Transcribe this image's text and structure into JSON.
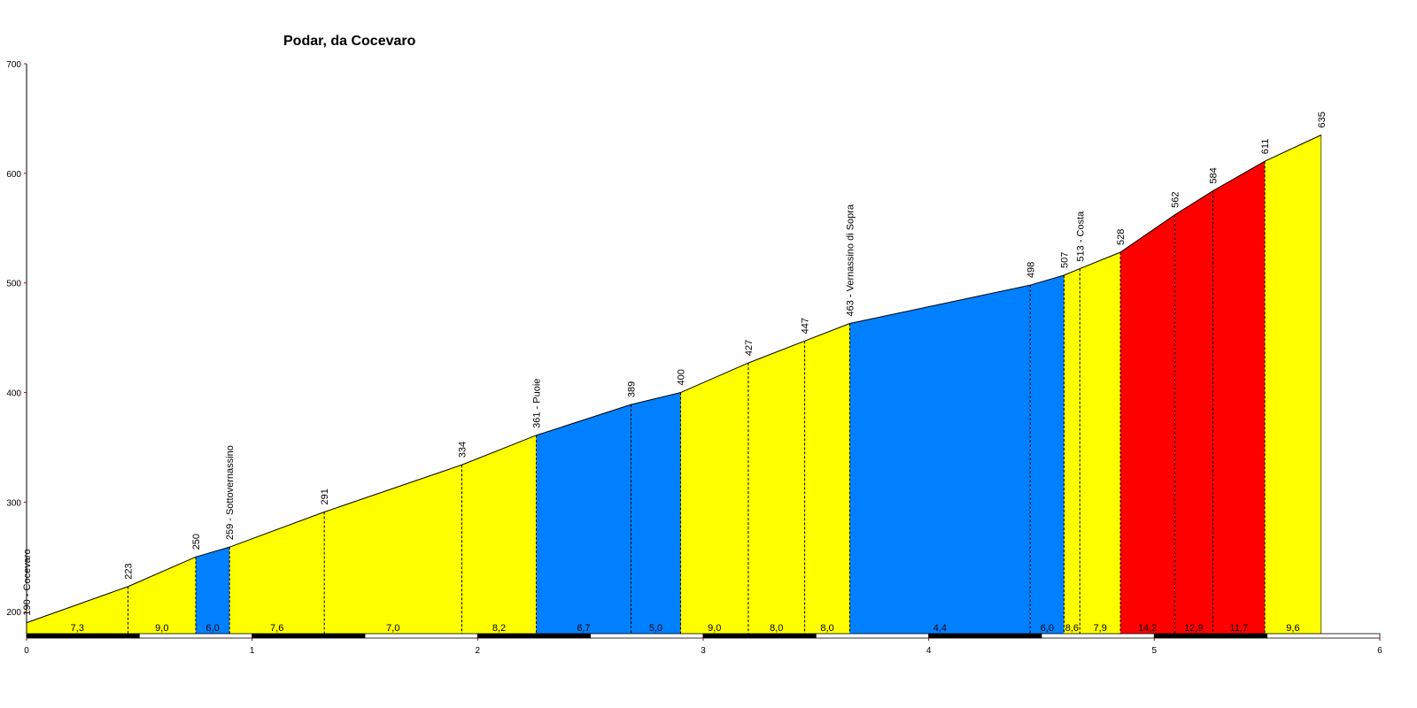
{
  "chart_data": {
    "type": "area",
    "title": "Podar, da Cocevaro",
    "xlabel": "",
    "ylabel": "",
    "xlim": [
      0,
      6
    ],
    "ylim": [
      180,
      700
    ],
    "x_ticks": [
      "0",
      "1",
      "2",
      "3",
      "4",
      "5",
      "6"
    ],
    "y_ticks": [
      "200",
      "300",
      "400",
      "500",
      "600",
      "700"
    ],
    "grid": false,
    "points": [
      {
        "x": 0.0,
        "y": 190,
        "label": "190 - Cocevaro"
      },
      {
        "x": 0.45,
        "y": 223,
        "label": "223"
      },
      {
        "x": 0.75,
        "y": 250,
        "label": "250"
      },
      {
        "x": 0.9,
        "y": 259,
        "label": "259 - Sottovernassino"
      },
      {
        "x": 1.32,
        "y": 291,
        "label": "291"
      },
      {
        "x": 1.93,
        "y": 334,
        "label": "334"
      },
      {
        "x": 2.26,
        "y": 361,
        "label": "361 - Puoie"
      },
      {
        "x": 2.68,
        "y": 389,
        "label": "389"
      },
      {
        "x": 2.9,
        "y": 400,
        "label": "400"
      },
      {
        "x": 3.2,
        "y": 427,
        "label": "427"
      },
      {
        "x": 3.45,
        "y": 447,
        "label": "447"
      },
      {
        "x": 3.65,
        "y": 463,
        "label": "463 - Vernassino di Sopra"
      },
      {
        "x": 4.45,
        "y": 498,
        "label": "498"
      },
      {
        "x": 4.6,
        "y": 507,
        "label": "507"
      },
      {
        "x": 4.67,
        "y": 513,
        "label": "513 - Costa"
      },
      {
        "x": 4.85,
        "y": 528,
        "label": "528"
      },
      {
        "x": 5.09,
        "y": 562,
        "label": "562"
      },
      {
        "x": 5.26,
        "y": 584,
        "label": "584"
      },
      {
        "x": 5.49,
        "y": 611,
        "label": "611"
      },
      {
        "x": 5.74,
        "y": 635,
        "label": "635"
      }
    ],
    "segments": [
      {
        "gradient": "7,3",
        "color": "#ffff00"
      },
      {
        "gradient": "9,0",
        "color": "#ffff00"
      },
      {
        "gradient": "6,0",
        "color": "#0080ff"
      },
      {
        "gradient": "7,6",
        "color": "#ffff00"
      },
      {
        "gradient": "7,0",
        "color": "#ffff00"
      },
      {
        "gradient": "8,2",
        "color": "#ffff00"
      },
      {
        "gradient": "6,7",
        "color": "#0080ff"
      },
      {
        "gradient": "5,0",
        "color": "#0080ff"
      },
      {
        "gradient": "9,0",
        "color": "#ffff00"
      },
      {
        "gradient": "8,0",
        "color": "#ffff00"
      },
      {
        "gradient": "8,0",
        "color": "#ffff00"
      },
      {
        "gradient": "4,4",
        "color": "#0080ff"
      },
      {
        "gradient": "6,0",
        "color": "#0080ff"
      },
      {
        "gradient": "8,6",
        "color": "#ffff00"
      },
      {
        "gradient": "7,9",
        "color": "#ffff00"
      },
      {
        "gradient": "14,2",
        "color": "#ff0000"
      },
      {
        "gradient": "12,9",
        "color": "#ff0000"
      },
      {
        "gradient": "11,7",
        "color": "#ff0000"
      },
      {
        "gradient": "9,6",
        "color": "#ffff00"
      }
    ],
    "colors": {
      "axis": "#000000",
      "tick_mark": "#cc0000",
      "outline": "#000000",
      "scale_dark": "#000000",
      "scale_light": "#ffffff"
    }
  }
}
